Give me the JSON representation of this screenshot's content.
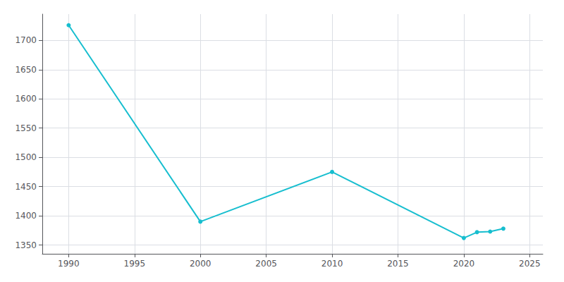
{
  "chart_data": {
    "type": "line",
    "x": [
      1990,
      2000,
      2010,
      2020,
      2021,
      2022,
      2023
    ],
    "values": [
      1726,
      1390,
      1475,
      1362,
      1372,
      1373,
      1378
    ],
    "color": "#17becf",
    "marker": "circle",
    "xlim": [
      1988,
      2026
    ],
    "xticks": [
      1990,
      1995,
      2000,
      2005,
      2010,
      2015,
      2020,
      2025
    ],
    "ylim": [
      1335,
      1745
    ],
    "yticks": [
      1350,
      1400,
      1450,
      1500,
      1550,
      1600,
      1650,
      1700
    ],
    "grid": true
  }
}
